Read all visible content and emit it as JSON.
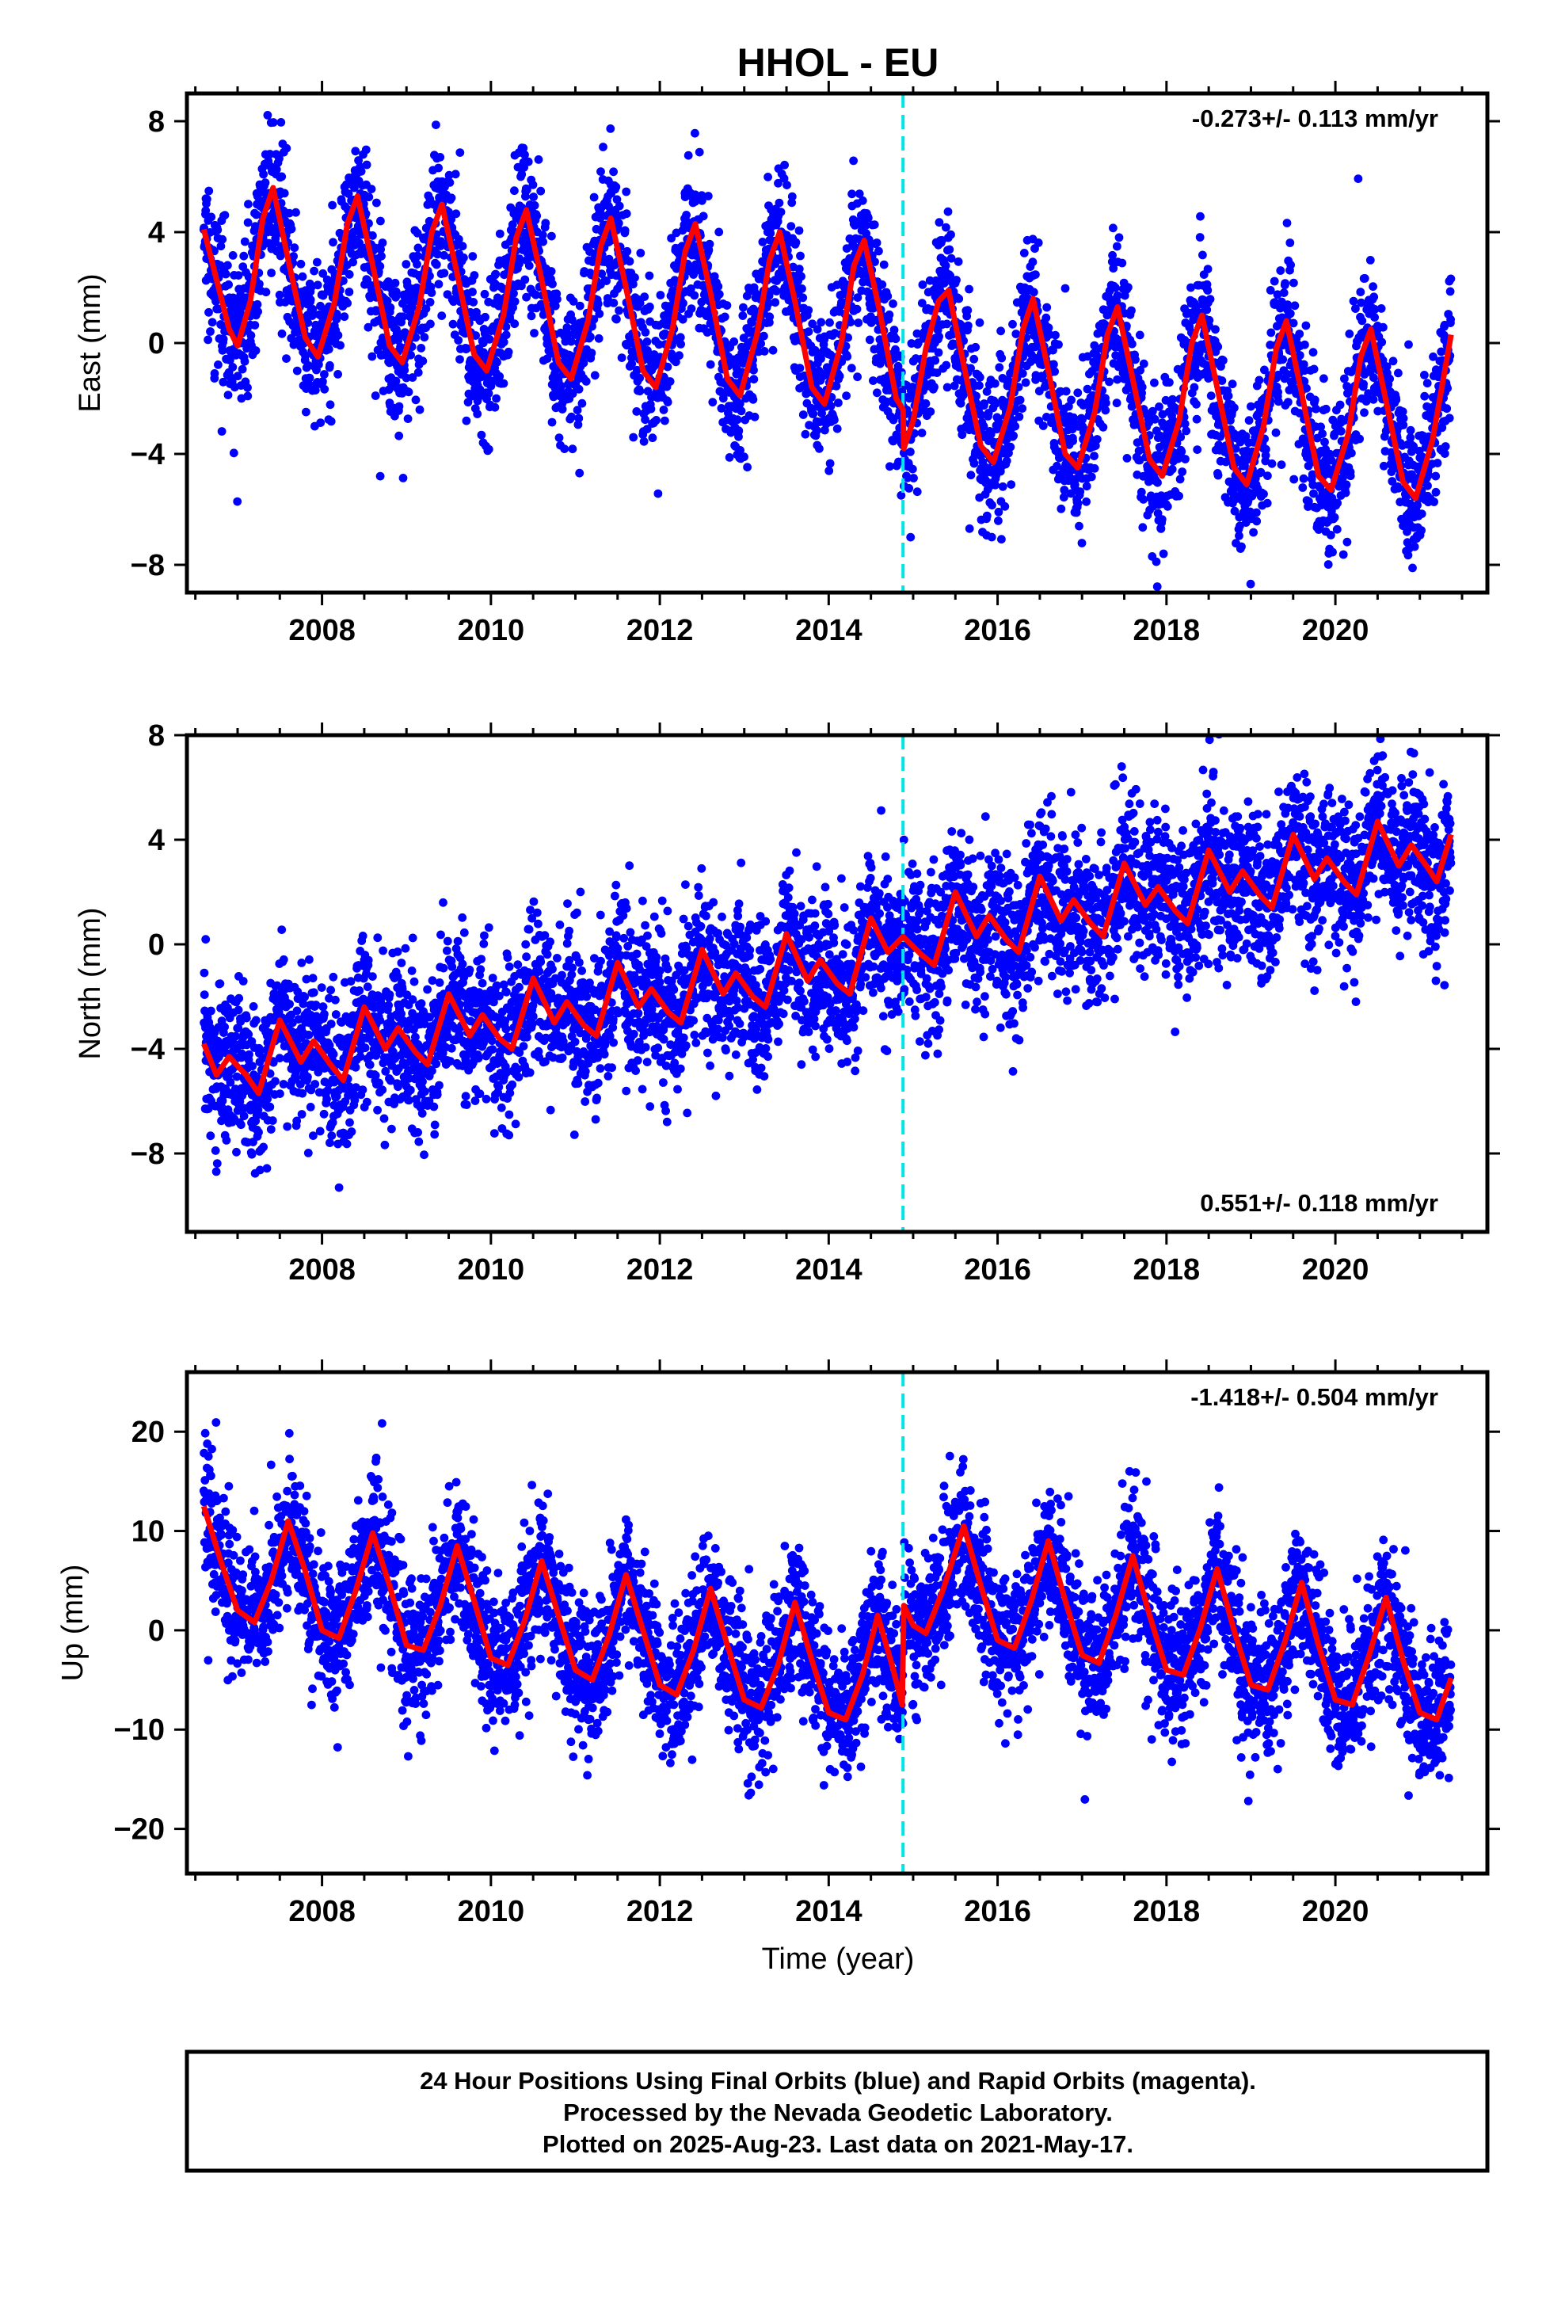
{
  "title": "HHOL - EU",
  "xlabel": "Time (year)",
  "footer": {
    "line1": "24 Hour Positions Using Final Orbits (blue) and Rapid Orbits (magenta).",
    "line2": "Processed by the Nevada Geodetic Laboratory.",
    "line3": "Plotted on 2025-Aug-23. Last data on 2021-May-17."
  },
  "colors": {
    "final_orbits": "#0000ff",
    "model": "#ff0000",
    "event_line": "#00e5e5",
    "frame": "#000000"
  },
  "chart_data": [
    {
      "type": "scatter",
      "component": "East",
      "ylabel": "East (mm)",
      "xlim": [
        2006.4,
        2021.8
      ],
      "ylim": [
        -9,
        9
      ],
      "xticks": [
        2008,
        2010,
        2012,
        2014,
        2016,
        2018,
        2020
      ],
      "yticks": [
        -8,
        -4,
        0,
        4,
        8
      ],
      "rate_label": "-0.273+/- 0.113 mm/yr",
      "rate_position": "top-right",
      "event_line_x": 2014.88,
      "data_range": [
        2006.6,
        2021.37
      ],
      "model": {
        "type": "line",
        "points": [
          [
            2006.6,
            4.1
          ],
          [
            2006.9,
            0.5
          ],
          [
            2007.0,
            -0.1
          ],
          [
            2007.15,
            1.5
          ],
          [
            2007.3,
            4.5
          ],
          [
            2007.42,
            5.6
          ],
          [
            2007.6,
            3.0
          ],
          [
            2007.8,
            0.2
          ],
          [
            2007.95,
            -0.5
          ],
          [
            2008.15,
            1.5
          ],
          [
            2008.3,
            4.3
          ],
          [
            2008.42,
            5.3
          ],
          [
            2008.6,
            2.8
          ],
          [
            2008.8,
            -0.1
          ],
          [
            2008.95,
            -0.7
          ],
          [
            2009.15,
            1.3
          ],
          [
            2009.3,
            4.0
          ],
          [
            2009.42,
            5.0
          ],
          [
            2009.6,
            2.5
          ],
          [
            2009.8,
            -0.4
          ],
          [
            2009.95,
            -1.0
          ],
          [
            2010.15,
            1.0
          ],
          [
            2010.3,
            3.8
          ],
          [
            2010.42,
            4.8
          ],
          [
            2010.6,
            2.3
          ],
          [
            2010.8,
            -0.7
          ],
          [
            2010.95,
            -1.3
          ],
          [
            2011.15,
            0.8
          ],
          [
            2011.3,
            3.5
          ],
          [
            2011.42,
            4.5
          ],
          [
            2011.6,
            2.0
          ],
          [
            2011.8,
            -1.0
          ],
          [
            2011.95,
            -1.6
          ],
          [
            2012.15,
            0.5
          ],
          [
            2012.3,
            3.3
          ],
          [
            2012.42,
            4.3
          ],
          [
            2012.6,
            1.8
          ],
          [
            2012.8,
            -1.3
          ],
          [
            2012.95,
            -1.9
          ],
          [
            2013.15,
            0.3
          ],
          [
            2013.3,
            3.0
          ],
          [
            2013.42,
            4.0
          ],
          [
            2013.6,
            1.5
          ],
          [
            2013.8,
            -1.6
          ],
          [
            2013.95,
            -2.2
          ],
          [
            2014.15,
            0.0
          ],
          [
            2014.3,
            2.8
          ],
          [
            2014.42,
            3.7
          ],
          [
            2014.6,
            1.2
          ],
          [
            2014.8,
            -2.0
          ],
          [
            2014.88,
            -2.4
          ],
          [
            2014.89,
            -3.8
          ],
          [
            2015.0,
            -2.8
          ],
          [
            2015.15,
            -0.2
          ],
          [
            2015.3,
            1.5
          ],
          [
            2015.42,
            1.9
          ],
          [
            2015.6,
            -0.8
          ],
          [
            2015.8,
            -3.7
          ],
          [
            2015.95,
            -4.3
          ],
          [
            2016.15,
            -2.3
          ],
          [
            2016.3,
            0.5
          ],
          [
            2016.42,
            1.6
          ],
          [
            2016.6,
            -1.0
          ],
          [
            2016.8,
            -4.0
          ],
          [
            2016.95,
            -4.5
          ],
          [
            2017.15,
            -2.5
          ],
          [
            2017.3,
            0.3
          ],
          [
            2017.42,
            1.3
          ],
          [
            2017.6,
            -1.3
          ],
          [
            2017.8,
            -4.2
          ],
          [
            2017.95,
            -4.8
          ],
          [
            2018.15,
            -2.8
          ],
          [
            2018.3,
            0.0
          ],
          [
            2018.42,
            1.0
          ],
          [
            2018.6,
            -1.6
          ],
          [
            2018.8,
            -4.5
          ],
          [
            2018.95,
            -5.1
          ],
          [
            2019.15,
            -3.0
          ],
          [
            2019.3,
            -0.2
          ],
          [
            2019.42,
            0.8
          ],
          [
            2019.6,
            -1.8
          ],
          [
            2019.8,
            -4.8
          ],
          [
            2019.95,
            -5.3
          ],
          [
            2020.15,
            -3.3
          ],
          [
            2020.3,
            -0.5
          ],
          [
            2020.42,
            0.5
          ],
          [
            2020.6,
            -2.1
          ],
          [
            2020.8,
            -5.0
          ],
          [
            2020.95,
            -5.6
          ],
          [
            2021.15,
            -3.5
          ],
          [
            2021.37,
            0.3
          ]
        ]
      }
    },
    {
      "type": "scatter",
      "component": "North",
      "ylabel": "North (mm)",
      "xlim": [
        2006.4,
        2021.8
      ],
      "ylim": [
        -11,
        8
      ],
      "xticks": [
        2008,
        2010,
        2012,
        2014,
        2016,
        2018,
        2020
      ],
      "yticks": [
        -8,
        -4,
        0,
        4,
        8
      ],
      "rate_label": "0.551+/- 0.118 mm/yr",
      "rate_position": "bottom-right",
      "event_line_x": 2014.88,
      "data_range": [
        2006.6,
        2021.37
      ],
      "model": {
        "type": "line",
        "points": [
          [
            2006.6,
            -3.8
          ],
          [
            2006.75,
            -5.0
          ],
          [
            2006.9,
            -4.3
          ],
          [
            2007.1,
            -5.0
          ],
          [
            2007.25,
            -5.7
          ],
          [
            2007.5,
            -2.9
          ],
          [
            2007.75,
            -4.5
          ],
          [
            2007.9,
            -3.7
          ],
          [
            2008.1,
            -4.6
          ],
          [
            2008.25,
            -5.2
          ],
          [
            2008.5,
            -2.4
          ],
          [
            2008.75,
            -4.0
          ],
          [
            2008.9,
            -3.2
          ],
          [
            2009.1,
            -4.1
          ],
          [
            2009.25,
            -4.6
          ],
          [
            2009.5,
            -1.9
          ],
          [
            2009.75,
            -3.5
          ],
          [
            2009.9,
            -2.7
          ],
          [
            2010.1,
            -3.6
          ],
          [
            2010.25,
            -4.0
          ],
          [
            2010.5,
            -1.3
          ],
          [
            2010.75,
            -3.0
          ],
          [
            2010.9,
            -2.2
          ],
          [
            2011.1,
            -3.1
          ],
          [
            2011.25,
            -3.5
          ],
          [
            2011.5,
            -0.7
          ],
          [
            2011.75,
            -2.4
          ],
          [
            2011.9,
            -1.7
          ],
          [
            2012.1,
            -2.6
          ],
          [
            2012.25,
            -3.0
          ],
          [
            2012.5,
            -0.2
          ],
          [
            2012.75,
            -1.9
          ],
          [
            2012.9,
            -1.1
          ],
          [
            2013.1,
            -2.0
          ],
          [
            2013.25,
            -2.4
          ],
          [
            2013.5,
            0.4
          ],
          [
            2013.75,
            -1.4
          ],
          [
            2013.9,
            -0.6
          ],
          [
            2014.1,
            -1.5
          ],
          [
            2014.25,
            -1.9
          ],
          [
            2014.5,
            1.0
          ],
          [
            2014.7,
            -0.3
          ],
          [
            2014.88,
            0.3
          ],
          [
            2015.1,
            -0.4
          ],
          [
            2015.25,
            -0.8
          ],
          [
            2015.5,
            2.0
          ],
          [
            2015.75,
            0.3
          ],
          [
            2015.9,
            1.1
          ],
          [
            2016.1,
            0.2
          ],
          [
            2016.25,
            -0.3
          ],
          [
            2016.5,
            2.6
          ],
          [
            2016.75,
            0.9
          ],
          [
            2016.9,
            1.7
          ],
          [
            2017.1,
            0.8
          ],
          [
            2017.25,
            0.3
          ],
          [
            2017.5,
            3.1
          ],
          [
            2017.75,
            1.5
          ],
          [
            2017.9,
            2.2
          ],
          [
            2018.1,
            1.3
          ],
          [
            2018.25,
            0.8
          ],
          [
            2018.5,
            3.6
          ],
          [
            2018.75,
            2.0
          ],
          [
            2018.9,
            2.8
          ],
          [
            2019.1,
            1.9
          ],
          [
            2019.25,
            1.4
          ],
          [
            2019.5,
            4.2
          ],
          [
            2019.75,
            2.5
          ],
          [
            2019.9,
            3.3
          ],
          [
            2020.1,
            2.4
          ],
          [
            2020.25,
            1.9
          ],
          [
            2020.5,
            4.7
          ],
          [
            2020.75,
            3.0
          ],
          [
            2020.9,
            3.8
          ],
          [
            2021.1,
            2.9
          ],
          [
            2021.2,
            2.4
          ],
          [
            2021.37,
            4.2
          ]
        ]
      }
    },
    {
      "type": "scatter",
      "component": "Up",
      "ylabel": "Up (mm)",
      "xlim": [
        2006.4,
        2021.8
      ],
      "ylim": [
        -24.5,
        26
      ],
      "xticks": [
        2008,
        2010,
        2012,
        2014,
        2016,
        2018,
        2020
      ],
      "yticks": [
        -20,
        -10,
        0,
        10,
        20
      ],
      "rate_label": "-1.418+/- 0.504 mm/yr",
      "rate_position": "top-right",
      "event_line_x": 2014.88,
      "data_range": [
        2006.6,
        2021.37
      ],
      "model": {
        "type": "line",
        "points": [
          [
            2006.6,
            12.5
          ],
          [
            2006.8,
            7.0
          ],
          [
            2007.0,
            2.0
          ],
          [
            2007.2,
            0.8
          ],
          [
            2007.4,
            5.0
          ],
          [
            2007.6,
            11.0
          ],
          [
            2007.8,
            6.0
          ],
          [
            2008.0,
            0.0
          ],
          [
            2008.2,
            -0.8
          ],
          [
            2008.4,
            4.0
          ],
          [
            2008.6,
            9.8
          ],
          [
            2008.8,
            4.5
          ],
          [
            2009.0,
            -1.5
          ],
          [
            2009.2,
            -2.0
          ],
          [
            2009.4,
            2.5
          ],
          [
            2009.6,
            8.5
          ],
          [
            2009.8,
            3.0
          ],
          [
            2010.0,
            -2.8
          ],
          [
            2010.2,
            -3.5
          ],
          [
            2010.4,
            1.0
          ],
          [
            2010.6,
            7.0
          ],
          [
            2010.8,
            1.5
          ],
          [
            2011.0,
            -4.0
          ],
          [
            2011.2,
            -5.0
          ],
          [
            2011.4,
            -0.5
          ],
          [
            2011.6,
            5.6
          ],
          [
            2011.8,
            0.0
          ],
          [
            2012.0,
            -5.5
          ],
          [
            2012.2,
            -6.5
          ],
          [
            2012.4,
            -2.0
          ],
          [
            2012.6,
            4.2
          ],
          [
            2012.8,
            -1.5
          ],
          [
            2013.0,
            -7.0
          ],
          [
            2013.2,
            -7.8
          ],
          [
            2013.4,
            -3.5
          ],
          [
            2013.6,
            2.8
          ],
          [
            2013.8,
            -3.0
          ],
          [
            2014.0,
            -8.3
          ],
          [
            2014.2,
            -9.0
          ],
          [
            2014.4,
            -4.5
          ],
          [
            2014.58,
            1.5
          ],
          [
            2014.75,
            -3.5
          ],
          [
            2014.87,
            -7.5
          ],
          [
            2014.89,
            2.5
          ],
          [
            2015.0,
            0.5
          ],
          [
            2015.15,
            -0.3
          ],
          [
            2015.35,
            4.0
          ],
          [
            2015.6,
            10.5
          ],
          [
            2015.8,
            4.5
          ],
          [
            2016.0,
            -1.0
          ],
          [
            2016.2,
            -1.8
          ],
          [
            2016.4,
            3.0
          ],
          [
            2016.6,
            9.0
          ],
          [
            2016.8,
            3.0
          ],
          [
            2017.0,
            -2.5
          ],
          [
            2017.2,
            -3.3
          ],
          [
            2017.4,
            1.5
          ],
          [
            2017.6,
            7.5
          ],
          [
            2017.8,
            1.5
          ],
          [
            2018.0,
            -4.0
          ],
          [
            2018.2,
            -4.5
          ],
          [
            2018.4,
            0.2
          ],
          [
            2018.6,
            6.2
          ],
          [
            2018.8,
            0.0
          ],
          [
            2019.0,
            -5.5
          ],
          [
            2019.2,
            -6.0
          ],
          [
            2019.4,
            -1.2
          ],
          [
            2019.6,
            4.8
          ],
          [
            2019.8,
            -1.5
          ],
          [
            2020.0,
            -7.0
          ],
          [
            2020.2,
            -7.5
          ],
          [
            2020.4,
            -2.5
          ],
          [
            2020.6,
            3.3
          ],
          [
            2020.8,
            -3.0
          ],
          [
            2021.0,
            -8.3
          ],
          [
            2021.2,
            -9.0
          ],
          [
            2021.37,
            -4.8
          ]
        ]
      }
    }
  ]
}
